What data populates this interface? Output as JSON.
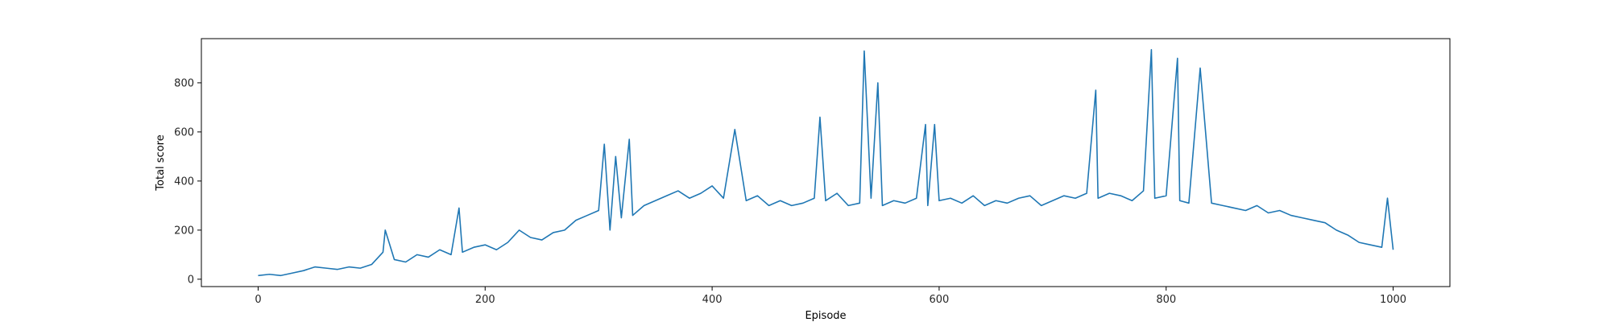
{
  "chart_data": {
    "type": "line",
    "xlabel": "Episode",
    "ylabel": "Total score",
    "xlim": [
      -50,
      1050
    ],
    "ylim": [
      -30,
      980
    ],
    "xticks": [
      0,
      200,
      400,
      600,
      800,
      1000
    ],
    "yticks": [
      0,
      200,
      400,
      600,
      800
    ],
    "xtick_labels": [
      "0",
      "200",
      "400",
      "600",
      "800",
      "1000"
    ],
    "ytick_labels": [
      "0",
      "200",
      "400",
      "600",
      "800"
    ],
    "grid": false,
    "line_color": "#1f77b4",
    "series": [
      {
        "x": [
          0,
          10,
          20,
          30,
          40,
          50,
          60,
          70,
          80,
          90,
          100,
          110,
          112,
          120,
          130,
          140,
          150,
          160,
          170,
          177,
          180,
          190,
          200,
          210,
          220,
          230,
          240,
          250,
          260,
          270,
          280,
          290,
          300,
          305,
          310,
          315,
          320,
          327,
          330,
          340,
          350,
          360,
          370,
          380,
          390,
          400,
          410,
          420,
          430,
          440,
          450,
          460,
          470,
          480,
          490,
          495,
          500,
          510,
          520,
          530,
          534,
          540,
          546,
          550,
          560,
          570,
          580,
          588,
          590,
          596,
          600,
          610,
          620,
          630,
          640,
          650,
          660,
          670,
          680,
          690,
          700,
          710,
          720,
          730,
          738,
          740,
          750,
          760,
          770,
          780,
          787,
          790,
          800,
          810,
          812,
          820,
          830,
          840,
          850,
          860,
          870,
          880,
          890,
          900,
          910,
          920,
          930,
          940,
          950,
          960,
          970,
          980,
          990,
          995,
          1000
        ],
        "y": [
          15,
          20,
          15,
          25,
          35,
          50,
          45,
          40,
          50,
          45,
          60,
          110,
          200,
          80,
          70,
          100,
          90,
          120,
          100,
          290,
          110,
          130,
          140,
          120,
          150,
          200,
          170,
          160,
          190,
          200,
          240,
          260,
          280,
          550,
          200,
          500,
          250,
          570,
          260,
          300,
          320,
          340,
          360,
          330,
          350,
          380,
          330,
          610,
          320,
          340,
          300,
          320,
          300,
          310,
          330,
          660,
          320,
          350,
          300,
          310,
          930,
          330,
          800,
          300,
          320,
          310,
          330,
          630,
          300,
          630,
          320,
          330,
          310,
          340,
          300,
          320,
          310,
          330,
          340,
          300,
          320,
          340,
          330,
          350,
          770,
          330,
          350,
          340,
          320,
          360,
          935,
          330,
          340,
          900,
          320,
          310,
          860,
          310,
          300,
          290,
          280,
          300,
          270,
          280,
          260,
          250,
          240,
          230,
          200,
          180,
          150,
          140,
          130,
          330,
          120
        ]
      }
    ]
  }
}
